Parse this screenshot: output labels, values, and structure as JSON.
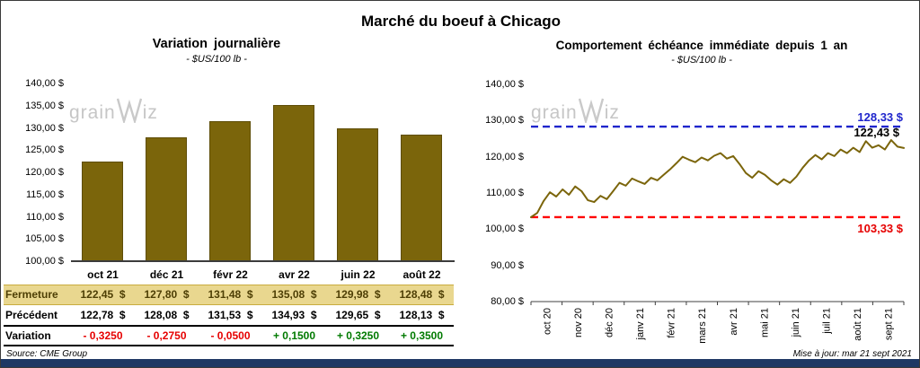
{
  "page": {
    "title": "Marché du boeuf à Chicago",
    "watermark_part1": "grain",
    "watermark_part2": "iz",
    "source": "Source: CME Group",
    "updated": "Mise à jour: mar 21 sept 2021"
  },
  "colors": {
    "bar": "#7b650b",
    "line": "#7b650b",
    "high_line": "#1f25cc",
    "low_line": "#ff0000",
    "negative": "#e60000",
    "positive": "#007a00",
    "fermeture_bg": "#e9d78f",
    "footer_bar": "#1f3864",
    "watermark": "#c6c6c6"
  },
  "chart_data": [
    {
      "type": "bar",
      "title": "Variation journalière",
      "subtitle": "- $US/100 lb -",
      "categories": [
        "oct 21",
        "déc 21",
        "févr 22",
        "avr 22",
        "juin 22",
        "août 22"
      ],
      "values": [
        122.45,
        127.8,
        131.48,
        135.08,
        129.98,
        128.48
      ],
      "ylim": [
        100,
        140
      ],
      "ytick_step": 5,
      "ytick_labels": [
        "140,00 $",
        "135,00 $",
        "130,00 $",
        "125,00 $",
        "120,00 $",
        "115,00 $",
        "110,00 $",
        "105,00 $",
        "100,00 $"
      ],
      "grid": false,
      "table": {
        "rows": [
          {
            "label": "Fermeture",
            "values": [
              "122,45  $",
              "127,80  $",
              "131,48  $",
              "135,08  $",
              "129,98  $",
              "128,48  $"
            ]
          },
          {
            "label": "Précédent",
            "values": [
              "122,78  $",
              "128,08  $",
              "131,53  $",
              "134,93  $",
              "129,65  $",
              "128,13  $"
            ]
          },
          {
            "label": "Variation",
            "values": [
              "- 0,3250",
              "- 0,2750",
              "- 0,0500",
              "+ 0,1500",
              "+ 0,3250",
              "+ 0,3500"
            ],
            "signs": [
              "neg",
              "neg",
              "neg",
              "pos",
              "pos",
              "pos"
            ]
          }
        ]
      }
    },
    {
      "type": "line",
      "title": "Comportement échéance immédiate depuis 1 an",
      "subtitle": "- $US/100 lb -",
      "x_labels": [
        "oct 20",
        "nov 20",
        "déc 20",
        "janv 21",
        "févr 21",
        "mars 21",
        "avr 21",
        "mai 21",
        "juin 21",
        "juil 21",
        "août 21",
        "sept 21"
      ],
      "ylim": [
        80,
        140
      ],
      "ytick_step": 10,
      "ytick_labels": [
        "140,00 $",
        "130,00 $",
        "120,00 $",
        "110,00 $",
        "100,00 $",
        "90,00 $",
        "80,00 $"
      ],
      "grid": false,
      "high": {
        "value": 128.33,
        "label": "128,33 $"
      },
      "last": {
        "value": 122.43,
        "label": "122,43 $"
      },
      "low": {
        "value": 103.33,
        "label": "103,33 $"
      },
      "series": [
        {
          "name": "échéance immédiate",
          "values": [
            103.3,
            104.5,
            107.8,
            110.2,
            109.0,
            111.0,
            109.5,
            111.8,
            110.5,
            108.0,
            107.5,
            109.2,
            108.3,
            110.5,
            112.8,
            112.0,
            114.0,
            113.2,
            112.5,
            114.2,
            113.5,
            115.0,
            116.5,
            118.2,
            120.0,
            119.2,
            118.5,
            119.8,
            119.0,
            120.3,
            121.0,
            119.5,
            120.2,
            118.0,
            115.5,
            114.2,
            116.0,
            115.0,
            113.5,
            112.3,
            113.8,
            112.8,
            114.5,
            117.0,
            119.0,
            120.5,
            119.3,
            121.0,
            120.2,
            122.0,
            121.0,
            122.5,
            121.3,
            124.3,
            122.5,
            123.2,
            122.0,
            124.6,
            122.8,
            122.43
          ]
        }
      ]
    }
  ]
}
